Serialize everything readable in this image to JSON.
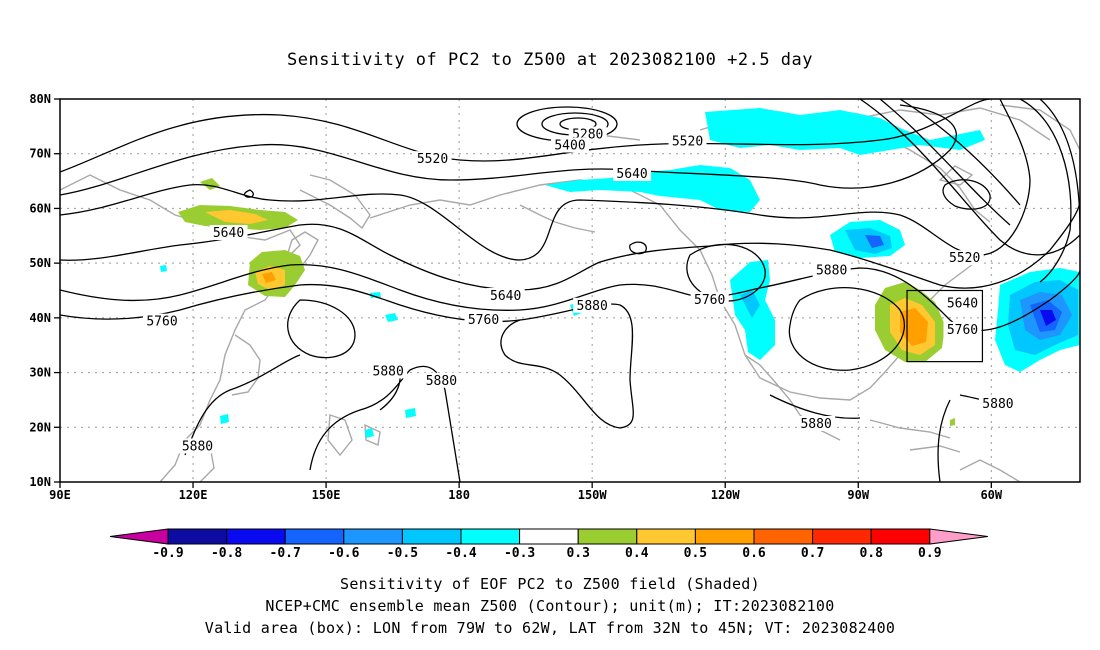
{
  "title": "Sensitivity of PC2 to Z500 at 2023082100 +2.5 day",
  "lat_ticks": [
    "80N",
    "70N",
    "60N",
    "50N",
    "40N",
    "30N",
    "20N",
    "10N"
  ],
  "lon_ticks": [
    "90E",
    "120E",
    "150E",
    "180",
    "150W",
    "120W",
    "90W",
    "60W"
  ],
  "contour_labels": [
    {
      "text": "5280",
      "lon": -151,
      "lat": 73.5
    },
    {
      "text": "5400",
      "lon": -155,
      "lat": 71.5
    },
    {
      "text": "5520",
      "lon": 174,
      "lat": 69
    },
    {
      "text": "5520",
      "lon": -128.5,
      "lat": 72.2
    },
    {
      "text": "5640",
      "lon": -141,
      "lat": 66.3
    },
    {
      "text": "5640",
      "lon": 128,
      "lat": 55.5
    },
    {
      "text": "5640",
      "lon": -169.5,
      "lat": 44
    },
    {
      "text": "5760",
      "lon": 113,
      "lat": 39.3
    },
    {
      "text": "5760",
      "lon": -174.5,
      "lat": 39.6
    },
    {
      "text": "5760",
      "lon": -123.5,
      "lat": 43.3
    },
    {
      "text": "5880",
      "lon": -150,
      "lat": 42.2
    },
    {
      "text": "5880",
      "lon": -96,
      "lat": 48.7
    },
    {
      "text": "5880",
      "lon": 164,
      "lat": 30.2
    },
    {
      "text": "5880",
      "lon": 176,
      "lat": 28.5
    },
    {
      "text": "5880",
      "lon": 121,
      "lat": 16.5
    },
    {
      "text": "5880",
      "lon": -99.5,
      "lat": 20.6
    },
    {
      "text": "5880",
      "lon": -58.5,
      "lat": 24.3
    },
    {
      "text": "5520",
      "lon": -66,
      "lat": 50.9
    },
    {
      "text": "5640",
      "lon": -66.5,
      "lat": 42.6
    },
    {
      "text": "5760",
      "lon": -66.5,
      "lat": 37.8
    }
  ],
  "valid_box": {
    "lon_min": -79,
    "lon_max": -62,
    "lat_min": 32,
    "lat_max": 45
  },
  "colorbar": {
    "labels": [
      "-0.9",
      "-0.8",
      "-0.7",
      "-0.6",
      "-0.5",
      "-0.4",
      "-0.3",
      "0.3",
      "0.4",
      "0.5",
      "0.6",
      "0.7",
      "0.8",
      "0.9"
    ],
    "colors": [
      "#0c0ca0",
      "#0a0af0",
      "#1464ff",
      "#1e96ff",
      "#00c8ff",
      "#00ffff",
      "#ffffff",
      "#9acd32",
      "#ffc830",
      "#ffa000",
      "#ff6400",
      "#ff2800",
      "#ff0000"
    ],
    "low_arrow_color": "#c800a0",
    "high_arrow_color": "#ff9ec8"
  },
  "footer": {
    "line1": "Sensitivity of EOF PC2 to Z500 field (Shaded)",
    "line2": "NCEP+CMC ensemble mean Z500 (Contour); unit(m); IT:2023082100",
    "line3": "Valid area (box): LON from 79W to 62W, LAT from 32N to 45N; VT: 2023082400"
  }
}
